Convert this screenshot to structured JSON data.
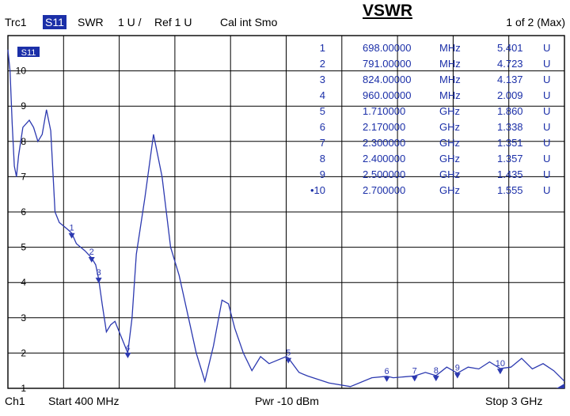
{
  "header": {
    "trace": "Trc1",
    "param": "S11",
    "format": "SWR",
    "scale": "1 U /",
    "ref": "Ref 1 U",
    "cal": "Cal int Smo",
    "title": "VSWR",
    "page": "1 of 2 (Max)"
  },
  "footer": {
    "channel": "Ch1",
    "start": "Start  400 MHz",
    "power": "Pwr  -10 dBm",
    "stop": "Stop  3 GHz"
  },
  "colors": {
    "trace": "#2c39b0",
    "badge": "#1b2fa8",
    "grid": "#000000"
  },
  "trace_label": "S11",
  "y_ticks": [
    "10",
    "9",
    "8",
    "7",
    "6",
    "5",
    "4",
    "3",
    "2",
    "1"
  ],
  "markers": [
    {
      "id": "1",
      "freq": "698.00000",
      "unit": "MHz",
      "value": "5.401",
      "u": "U"
    },
    {
      "id": "2",
      "freq": "791.00000",
      "unit": "MHz",
      "value": "4.723",
      "u": "U"
    },
    {
      "id": "3",
      "freq": "824.00000",
      "unit": "MHz",
      "value": "4.137",
      "u": "U"
    },
    {
      "id": "4",
      "freq": "960.00000",
      "unit": "MHz",
      "value": "2.009",
      "u": "U"
    },
    {
      "id": "5",
      "freq": "1.710000",
      "unit": "GHz",
      "value": "1.860",
      "u": "U"
    },
    {
      "id": "6",
      "freq": "2.170000",
      "unit": "GHz",
      "value": "1.338",
      "u": "U"
    },
    {
      "id": "7",
      "freq": "2.300000",
      "unit": "GHz",
      "value": "1.351",
      "u": "U"
    },
    {
      "id": "8",
      "freq": "2.400000",
      "unit": "GHz",
      "value": "1.357",
      "u": "U"
    },
    {
      "id": "9",
      "freq": "2.500000",
      "unit": "GHz",
      "value": "1.435",
      "u": "U"
    },
    {
      "id": "•10",
      "freq": "2.700000",
      "unit": "GHz",
      "value": "1.555",
      "u": "U"
    }
  ],
  "chart_data": {
    "type": "line",
    "title": "VSWR",
    "xlabel": "",
    "ylabel": "",
    "xlim": [
      400,
      3000
    ],
    "ylim": [
      1,
      11
    ],
    "grid": true,
    "series": [
      {
        "name": "S11",
        "x": [
          400,
          410,
          420,
          430,
          440,
          450,
          470,
          500,
          520,
          540,
          560,
          580,
          600,
          620,
          640,
          660,
          680,
          698,
          720,
          760,
          791,
          810,
          824,
          840,
          860,
          880,
          900,
          920,
          940,
          960,
          980,
          1000,
          1040,
          1080,
          1120,
          1160,
          1200,
          1240,
          1280,
          1320,
          1360,
          1400,
          1430,
          1460,
          1500,
          1540,
          1580,
          1620,
          1660,
          1700,
          1710,
          1760,
          1800,
          1900,
          2000,
          2100,
          2170,
          2200,
          2300,
          2350,
          2400,
          2450,
          2500,
          2550,
          2600,
          2650,
          2700,
          2750,
          2800,
          2850,
          2900,
          2950,
          3000
        ],
        "y": [
          10.6,
          10.0,
          8.5,
          7.3,
          7.0,
          7.6,
          8.4,
          8.6,
          8.4,
          8.0,
          8.2,
          8.9,
          8.3,
          6.0,
          5.7,
          5.6,
          5.5,
          5.4,
          5.1,
          4.9,
          4.7,
          4.5,
          4.1,
          3.4,
          2.6,
          2.8,
          2.9,
          2.6,
          2.3,
          2.0,
          3.0,
          4.8,
          6.4,
          8.2,
          7.0,
          5.0,
          4.2,
          3.1,
          2.0,
          1.2,
          2.2,
          3.5,
          3.4,
          2.7,
          2.0,
          1.5,
          1.9,
          1.7,
          1.8,
          1.9,
          1.86,
          1.45,
          1.35,
          1.15,
          1.05,
          1.3,
          1.34,
          1.3,
          1.35,
          1.45,
          1.36,
          1.6,
          1.43,
          1.6,
          1.55,
          1.75,
          1.56,
          1.6,
          1.85,
          1.55,
          1.7,
          1.5,
          1.2
        ]
      }
    ],
    "marker_points": [
      {
        "label": "1",
        "x": 698,
        "y": 5.401
      },
      {
        "label": "2",
        "x": 791,
        "y": 4.723
      },
      {
        "label": "3",
        "x": 824,
        "y": 4.137
      },
      {
        "label": "4",
        "x": 960,
        "y": 2.009
      },
      {
        "label": "5",
        "x": 1710,
        "y": 1.86
      },
      {
        "label": "6",
        "x": 2170,
        "y": 1.338
      },
      {
        "label": "7",
        "x": 2300,
        "y": 1.351
      },
      {
        "label": "8",
        "x": 2400,
        "y": 1.357
      },
      {
        "label": "9",
        "x": 2500,
        "y": 1.435
      },
      {
        "label": "10",
        "x": 2700,
        "y": 1.555
      }
    ]
  }
}
